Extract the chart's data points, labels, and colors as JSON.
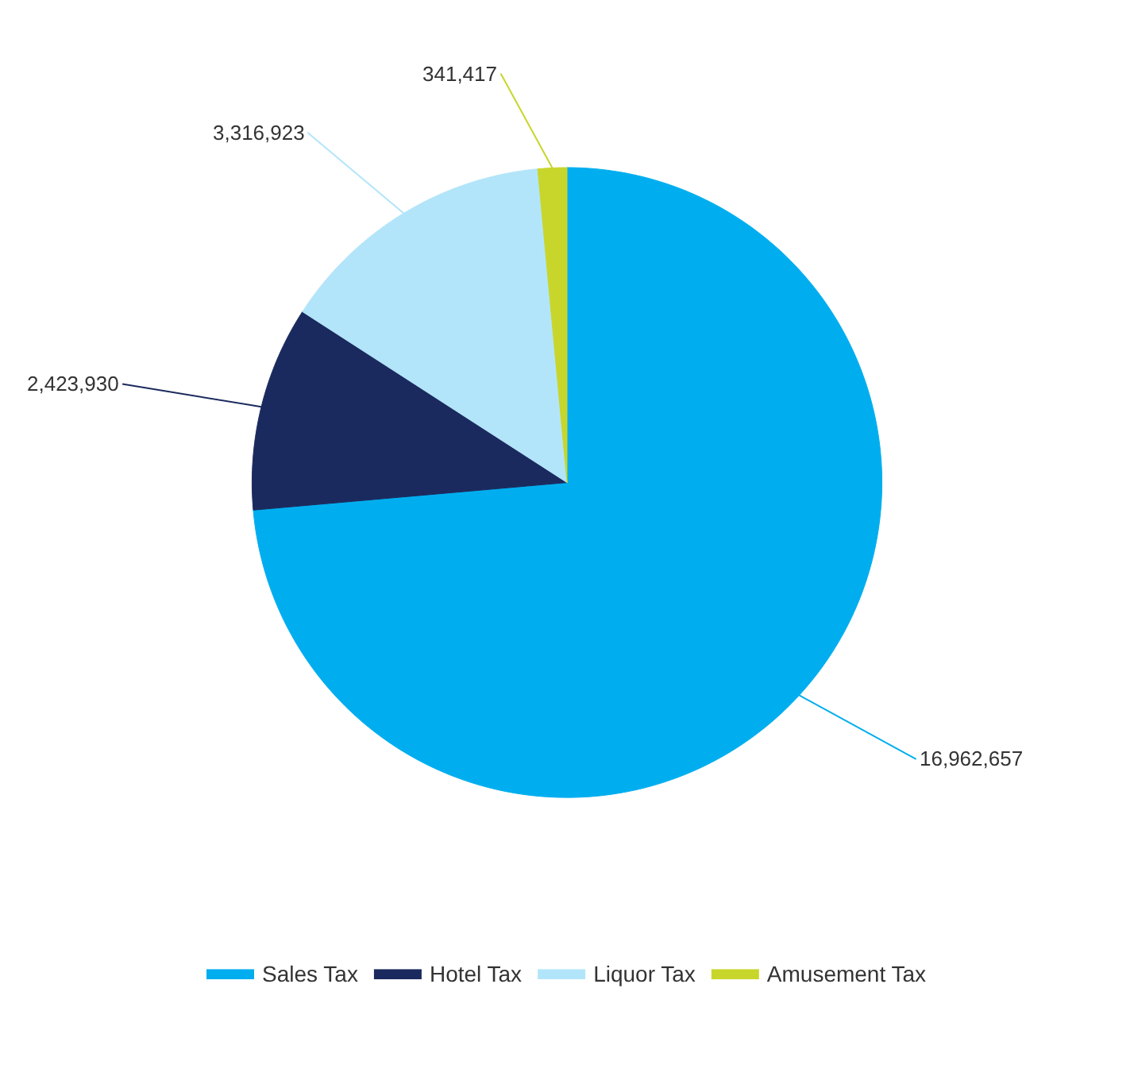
{
  "chart_data": {
    "type": "pie",
    "categories": [
      "Sales Tax",
      "Hotel Tax",
      "Liquor Tax",
      "Amusement Tax"
    ],
    "values": [
      16962657,
      2423930,
      3316923,
      341417
    ],
    "value_labels": [
      "16,962,657",
      "2,423,930",
      "3,316,923",
      "341,417"
    ],
    "colors": [
      "#00aeef",
      "#1b2a5e",
      "#b3e5fa",
      "#c8d62b"
    ],
    "legend": "bottom"
  }
}
